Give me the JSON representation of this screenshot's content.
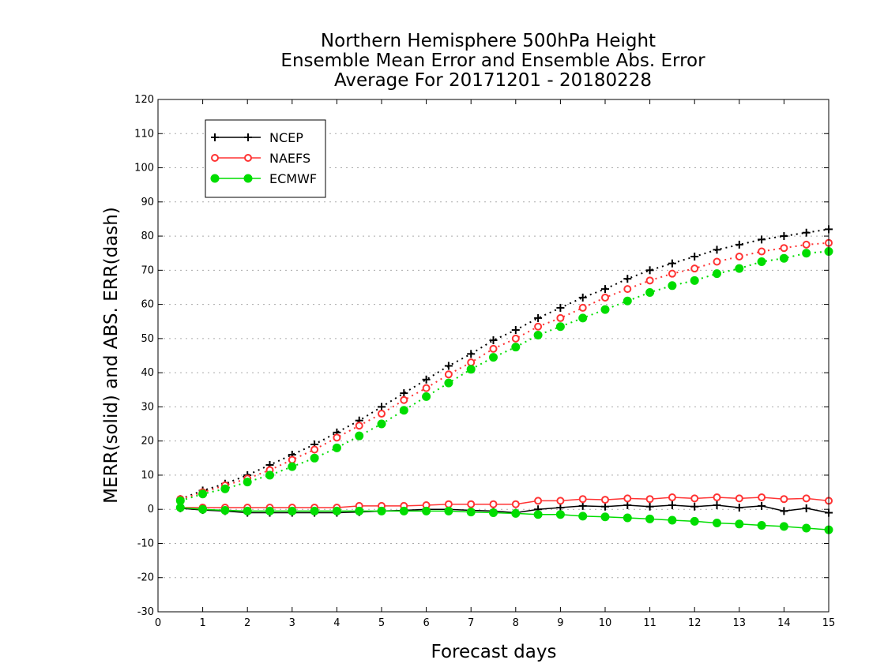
{
  "chart_data": {
    "type": "line",
    "title": [
      "Northern Hemisphere 500hPa Height",
      "Ensemble Mean Error and Ensemble Abs. Error",
      "Average For 20171201 - 20180228"
    ],
    "xlabel": "Forecast days",
    "ylabel": "MERR(solid) and ABS. ERR(dash)",
    "xlim": [
      0,
      15
    ],
    "ylim": [
      -30,
      120
    ],
    "xticks": [
      "0",
      "1",
      "2",
      "3",
      "4",
      "5",
      "6",
      "7",
      "8",
      "9",
      "10",
      "11",
      "12",
      "13",
      "14",
      "15"
    ],
    "yticks": [
      "-30",
      "-20",
      "-10",
      "0",
      "10",
      "20",
      "30",
      "40",
      "50",
      "60",
      "70",
      "80",
      "90",
      "100",
      "110",
      "120"
    ],
    "grid": true,
    "legend_position": "top-left",
    "x": [
      0.5,
      1,
      1.5,
      2,
      2.5,
      3,
      3.5,
      4,
      4.5,
      5,
      5.5,
      6,
      6.5,
      7,
      7.5,
      8,
      8.5,
      9,
      9.5,
      10,
      10.5,
      11,
      11.5,
      12,
      12.5,
      13,
      13.5,
      14,
      14.5,
      15
    ],
    "series": [
      {
        "name": "NCEP",
        "color": "#000000",
        "marker": "plus",
        "abs_err": [
          3,
          5.5,
          7.5,
          10,
          13,
          16,
          19,
          22.5,
          26,
          30,
          34,
          38,
          42,
          45.5,
          49.5,
          52.5,
          56,
          59,
          62,
          64.5,
          67.5,
          70,
          72,
          74,
          76,
          77.5,
          79,
          80,
          81,
          82
        ],
        "mean_err": [
          0.3,
          -0.2,
          -0.5,
          -1,
          -1,
          -1,
          -1,
          -1,
          -0.8,
          -0.5,
          -0.3,
          0,
          0,
          -0.3,
          -0.5,
          -1,
          0,
          0.5,
          1,
          0.8,
          1.2,
          0.8,
          1.2,
          0.8,
          1.2,
          0.5,
          1,
          -0.5,
          0.3,
          -1
        ]
      },
      {
        "name": "NAEFS",
        "color": "#ff3333",
        "marker": "open-circle",
        "abs_err": [
          3,
          5,
          7,
          9,
          11.5,
          14.5,
          17.5,
          21,
          24.5,
          28,
          32,
          35.5,
          39.5,
          43,
          47,
          50,
          53.5,
          56,
          59,
          62,
          64.5,
          67,
          69,
          70.5,
          72.5,
          74,
          75.5,
          76.5,
          77.5,
          78
        ],
        "mean_err": [
          0.5,
          0.5,
          0.5,
          0.5,
          0.5,
          0.5,
          0.5,
          0.5,
          1,
          1,
          1,
          1.2,
          1.5,
          1.5,
          1.5,
          1.5,
          2.5,
          2.5,
          3,
          2.8,
          3.2,
          3,
          3.5,
          3.2,
          3.5,
          3.2,
          3.5,
          3,
          3.2,
          2.5
        ]
      },
      {
        "name": "ECMWF",
        "color": "#00dd00",
        "marker": "filled-circle",
        "abs_err": [
          2.5,
          4.5,
          6,
          8,
          10,
          12.5,
          15,
          18,
          21.5,
          25,
          29,
          33,
          37,
          41,
          44.5,
          47.5,
          51,
          53.5,
          56,
          58.5,
          61,
          63.5,
          65.5,
          67,
          69,
          70.5,
          72.5,
          73.5,
          75,
          75.5
        ],
        "mean_err": [
          0.5,
          0,
          -0.3,
          -0.5,
          -0.5,
          -0.5,
          -0.5,
          -0.5,
          -0.5,
          -0.5,
          -0.5,
          -0.5,
          -0.5,
          -0.8,
          -1,
          -1.2,
          -1.5,
          -1.5,
          -2,
          -2.2,
          -2.5,
          -2.8,
          -3.2,
          -3.5,
          -4,
          -4.3,
          -4.7,
          -5,
          -5.5,
          -6
        ]
      }
    ]
  }
}
